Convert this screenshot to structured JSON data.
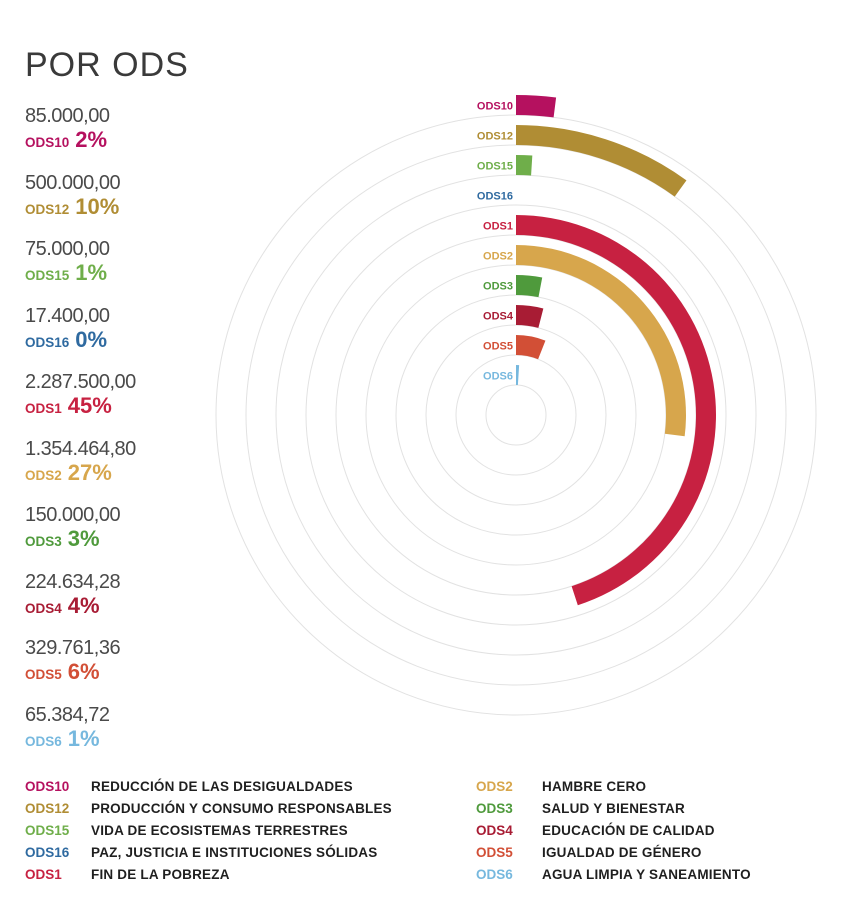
{
  "title": "POR ODS",
  "chart_data": {
    "type": "radial-bar",
    "title": "POR ODS",
    "max_value": 100,
    "series": [
      {
        "code": "ODS10",
        "amount": "85.000,00",
        "percent_label": "2%",
        "value": 2,
        "color": "#b5115f"
      },
      {
        "code": "ODS12",
        "amount": "500.000,00",
        "percent_label": "10%",
        "value": 10,
        "color": "#b08d34"
      },
      {
        "code": "ODS15",
        "amount": "75.000,00",
        "percent_label": "1%",
        "value": 1,
        "color": "#6fae4a"
      },
      {
        "code": "ODS16",
        "amount": "17.400,00",
        "percent_label": "0%",
        "value": 0,
        "color": "#2f6aa0"
      },
      {
        "code": "ODS1",
        "amount": "2.287.500,00",
        "percent_label": "45%",
        "value": 45,
        "color": "#c72141"
      },
      {
        "code": "ODS2",
        "amount": "1.354.464,80",
        "percent_label": "27%",
        "value": 27,
        "color": "#d7a64c"
      },
      {
        "code": "ODS3",
        "amount": "150.000,00",
        "percent_label": "3%",
        "value": 3,
        "color": "#4f9a3c"
      },
      {
        "code": "ODS4",
        "amount": "224.634,28",
        "percent_label": "4%",
        "value": 4,
        "color": "#a81c34"
      },
      {
        "code": "ODS5",
        "amount": "329.761,36",
        "percent_label": "6%",
        "value": 6,
        "color": "#d24f36"
      },
      {
        "code": "ODS6",
        "amount": "65.384,72",
        "percent_label": "1%",
        "value": 1,
        "color": "#76b8de"
      }
    ]
  },
  "legend": {
    "left": [
      {
        "code": "ODS10",
        "name": "REDUCCIÓN DE LAS DESIGUALDADES",
        "color": "#b5115f"
      },
      {
        "code": "ODS12",
        "name": "PRODUCCIÓN Y CONSUMO RESPONSABLES",
        "color": "#b08d34"
      },
      {
        "code": "ODS15",
        "name": "VIDA DE ECOSISTEMAS TERRESTRES",
        "color": "#6fae4a"
      },
      {
        "code": "ODS16",
        "name": "PAZ, JUSTICIA E INSTITUCIONES SÓLIDAS",
        "color": "#2f6aa0"
      },
      {
        "code": "ODS1",
        "name": "FIN DE LA POBREZA",
        "color": "#c72141"
      }
    ],
    "right": [
      {
        "code": "ODS2",
        "name": "HAMBRE CERO",
        "color": "#d7a64c"
      },
      {
        "code": "ODS3",
        "name": "SALUD Y BIENESTAR",
        "color": "#4f9a3c"
      },
      {
        "code": "ODS4",
        "name": "EDUCACIÓN DE CALIDAD",
        "color": "#a81c34"
      },
      {
        "code": "ODS5",
        "name": "IGUALDAD DE GÉNERO",
        "color": "#d24f36"
      },
      {
        "code": "ODS6",
        "name": "AGUA LIMPIA Y SANEAMIENTO",
        "color": "#76b8de"
      }
    ]
  }
}
